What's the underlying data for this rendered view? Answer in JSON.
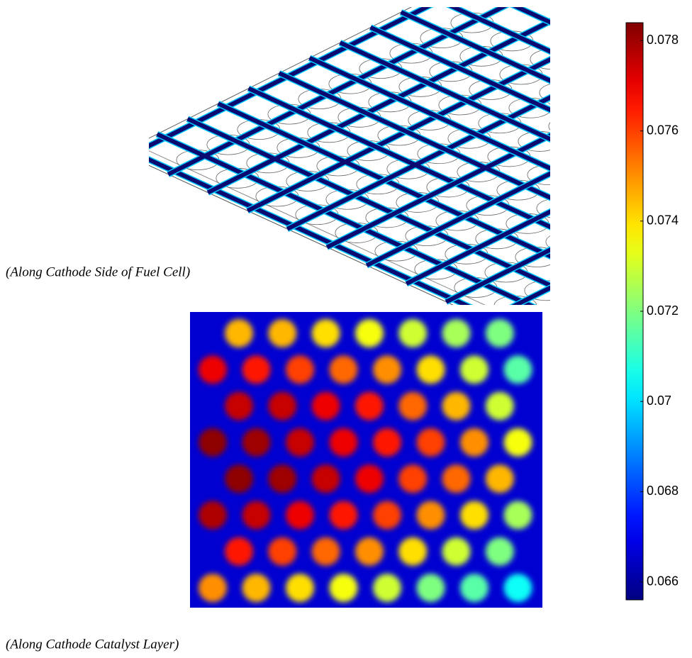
{
  "captions": [
    "(Along Cathode Side of Fuel Cell)",
    "(Along Cathode Catalyst Layer)"
  ],
  "colorbar": {
    "lim": [
      0.0656,
      0.0784
    ],
    "ticks": [
      0.066,
      0.068,
      0.07,
      0.072,
      0.074,
      0.076,
      0.078
    ]
  },
  "dots": [
    [
      0.0745,
      0.0745,
      0.074,
      0.0735,
      0.073,
      0.0725,
      0.072
    ],
    [
      0.077,
      0.0765,
      0.076,
      0.0755,
      0.075,
      0.074,
      0.073,
      0.0715
    ],
    [
      0.0775,
      0.0775,
      0.077,
      0.0765,
      0.0755,
      0.0745,
      0.073
    ],
    [
      0.0782,
      0.078,
      0.0775,
      0.077,
      0.0765,
      0.076,
      0.075,
      0.0735
    ],
    [
      0.0782,
      0.078,
      0.0775,
      0.077,
      0.076,
      0.0755,
      0.0745
    ],
    [
      0.0778,
      0.0775,
      0.077,
      0.0765,
      0.076,
      0.075,
      0.074,
      0.0725
    ],
    [
      0.0765,
      0.076,
      0.0755,
      0.075,
      0.074,
      0.073,
      0.072
    ],
    [
      0.075,
      0.0745,
      0.074,
      0.0735,
      0.073,
      0.072,
      0.0715,
      0.0705
    ]
  ]
}
